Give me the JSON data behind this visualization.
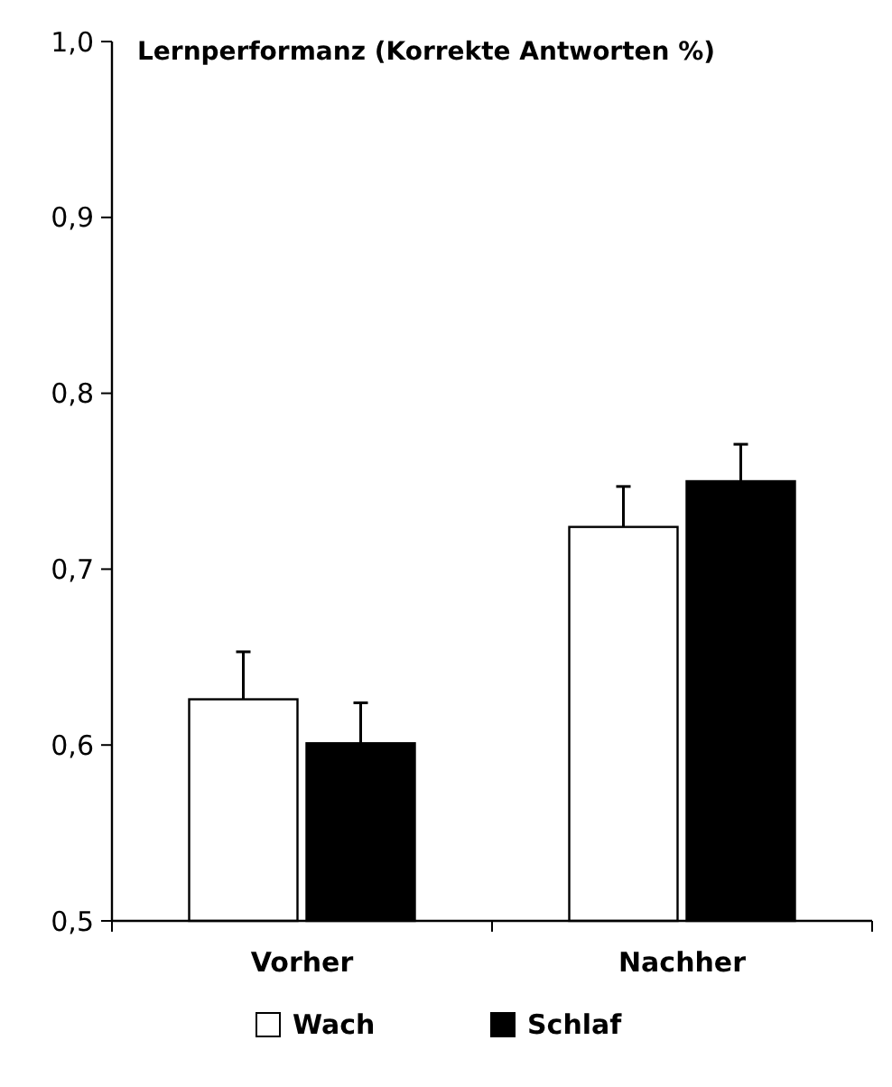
{
  "chart_data": {
    "type": "bar",
    "title": "Lernperformanz (Korrekte Antworten %)",
    "categories": [
      "Vorher",
      "Nachher"
    ],
    "series": [
      {
        "name": "Wach",
        "color": "#ffffff",
        "values": [
          0.626,
          0.724
        ],
        "errors": [
          [
            0.626,
            0.653
          ],
          [
            0.724,
            0.747
          ]
        ]
      },
      {
        "name": "Schlaf",
        "color": "#000000",
        "values": [
          0.601,
          0.75
        ],
        "errors": [
          [
            0.601,
            0.624
          ],
          [
            0.75,
            0.771
          ]
        ]
      }
    ],
    "ylim": [
      0.5,
      1.0
    ],
    "yticks": [
      {
        "value": 0.5,
        "label": "0,5"
      },
      {
        "value": 0.6,
        "label": "0,6"
      },
      {
        "value": 0.7,
        "label": "0,7"
      },
      {
        "value": 0.8,
        "label": "0,8"
      },
      {
        "value": 0.9,
        "label": "0,9"
      },
      {
        "value": 1.0,
        "label": "1,0"
      }
    ],
    "grid": false,
    "legend": "bottom"
  }
}
